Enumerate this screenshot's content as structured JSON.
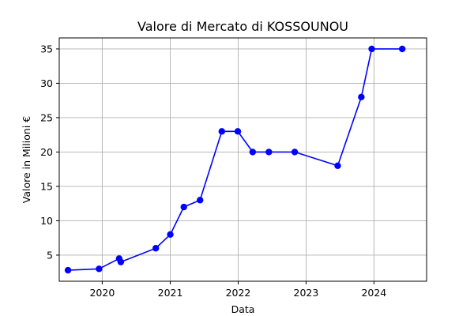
{
  "chart_data": {
    "type": "line",
    "title": "Valore di Mercato di KOSSOUNOU",
    "xlabel": "Data",
    "ylabel": "Valore in Milioni €",
    "x_tick_labels": [
      "2020",
      "2021",
      "2022",
      "2023",
      "2024"
    ],
    "y_tick_labels": [
      "5",
      "10",
      "15",
      "20",
      "25",
      "30",
      "35"
    ],
    "xlim": [
      "2019-05-15",
      "2024-10-10"
    ],
    "ylim": [
      1.2,
      36.6
    ],
    "grid": true,
    "colors": {
      "series": "#0000ff"
    },
    "series": [
      {
        "x": [
          "2019-07-01",
          "2019-12-15",
          "2020-04-01",
          "2020-04-10",
          "2020-10-15",
          "2021-01-01",
          "2021-03-15",
          "2021-06-10",
          "2021-10-05",
          "2021-12-30",
          "2022-03-20",
          "2022-06-15",
          "2022-11-01",
          "2023-06-20",
          "2023-10-25",
          "2023-12-20",
          "2024-06-01"
        ],
        "values": [
          2.8,
          3.0,
          4.5,
          4.0,
          6.0,
          8.0,
          12.0,
          13.0,
          23.0,
          23.0,
          20.0,
          20.0,
          20.0,
          18.0,
          28.0,
          35.0,
          35.0
        ]
      }
    ]
  }
}
